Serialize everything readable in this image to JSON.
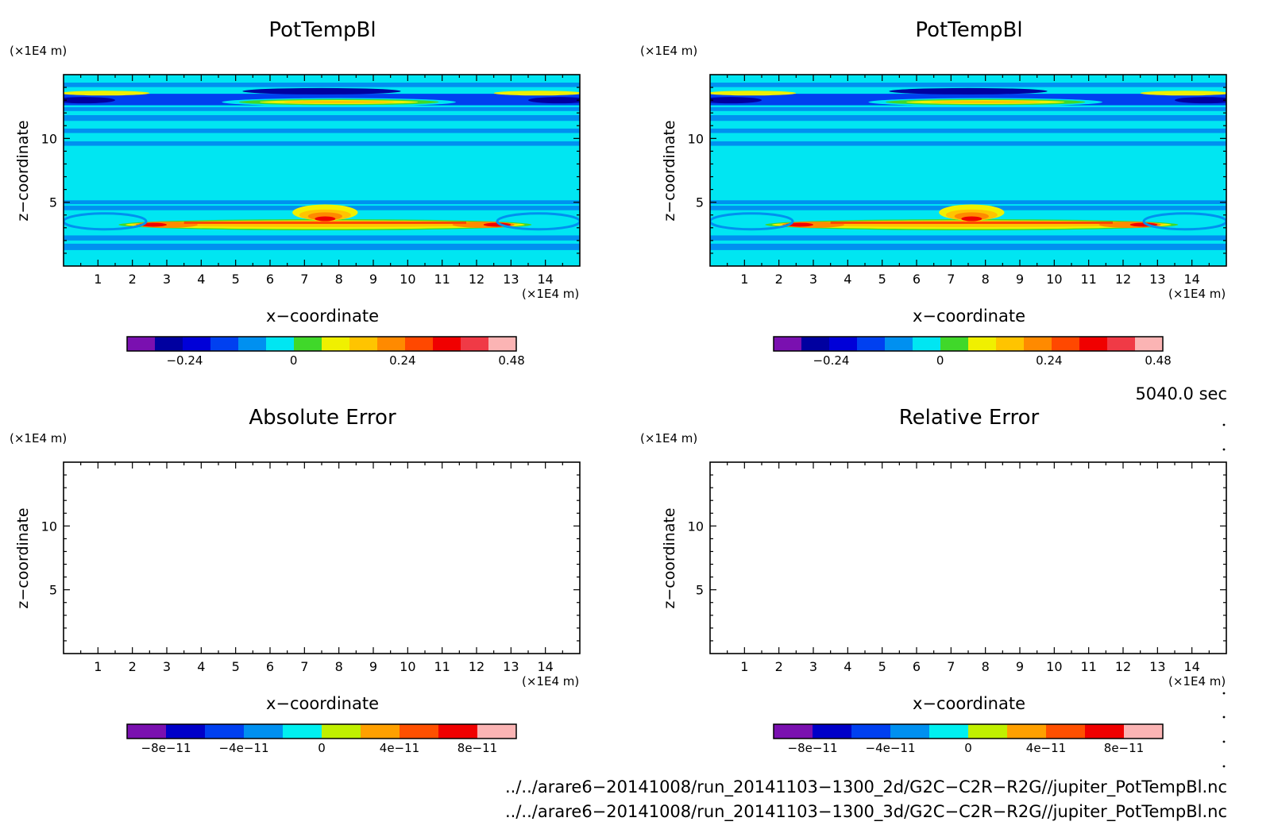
{
  "panels": [
    {
      "title": "PotTempBl",
      "xlabel": "x−coordinate",
      "ylabel": "z−coordinate",
      "x_unit": "(×1E4 m)",
      "y_unit": "(×1E4 m)",
      "field": "potential-temperature",
      "colorbar": {
        "levels": [
          "-0.36",
          "-0.30",
          "-0.24",
          "-0.18",
          "-0.12",
          "-0.06",
          "0",
          "0.06",
          "0.12",
          "0.18",
          "0.24",
          "0.30",
          "0.36",
          "0.42",
          "0.48",
          "0.54"
        ],
        "tick_labels": [
          "−0.24",
          "0",
          "0.24",
          "0.48"
        ],
        "tick_values": [
          -0.24,
          0,
          0.24,
          0.48
        ],
        "colors": [
          "#7a10b0",
          "#0000a0",
          "#0000d8",
          "#0040f0",
          "#0090f0",
          "#00e6f2",
          "#40d82a",
          "#f0f000",
          "#ffc400",
          "#ff8a00",
          "#ff4800",
          "#f00000",
          "#f03a46",
          "#fbb4b4"
        ]
      }
    },
    {
      "title": "PotTempBl",
      "xlabel": "x−coordinate",
      "ylabel": "z−coordinate",
      "x_unit": "(×1E4 m)",
      "y_unit": "(×1E4 m)",
      "field": "potential-temperature",
      "colorbar": {
        "tick_labels": [
          "−0.24",
          "0",
          "0.24",
          "0.48"
        ],
        "tick_values": [
          -0.24,
          0,
          0.24,
          0.48
        ],
        "colors": [
          "#7a10b0",
          "#0000a0",
          "#0000d8",
          "#0040f0",
          "#0090f0",
          "#00e6f2",
          "#40d82a",
          "#f0f000",
          "#ffc400",
          "#ff8a00",
          "#ff4800",
          "#f00000",
          "#f03a46",
          "#fbb4b4"
        ]
      }
    },
    {
      "title": "Absolute Error",
      "xlabel": "x−coordinate",
      "ylabel": "z−coordinate",
      "x_unit": "(×1E4 m)",
      "y_unit": "(×1E4 m)",
      "field": "empty",
      "colorbar": {
        "tick_labels": [
          "−8e−11",
          "−4e−11",
          "0",
          "4e−11",
          "8e−11"
        ],
        "tick_values": [
          -8e-11,
          -4e-11,
          0,
          4e-11,
          8e-11
        ],
        "colors": [
          "#7a10b0",
          "#0000c8",
          "#0040f0",
          "#0090f0",
          "#00f0f0",
          "#c0f000",
          "#ffa000",
          "#ff5000",
          "#f00000",
          "#fbb4b4"
        ]
      }
    },
    {
      "title": "Relative Error",
      "xlabel": "x−coordinate",
      "ylabel": "z−coordinate",
      "x_unit": "(×1E4 m)",
      "y_unit": "(×1E4 m)",
      "field": "empty",
      "colorbar": {
        "tick_labels": [
          "−8e−11",
          "−4e−11",
          "0",
          "4e−11",
          "8e−11"
        ],
        "tick_values": [
          -8e-11,
          -4e-11,
          0,
          4e-11,
          8e-11
        ],
        "colors": [
          "#7a10b0",
          "#0000c8",
          "#0040f0",
          "#0090f0",
          "#00f0f0",
          "#c0f000",
          "#ffa000",
          "#ff5000",
          "#f00000",
          "#fbb4b4"
        ]
      }
    }
  ],
  "time_label": "5040.0 sec",
  "file_paths": [
    "../../arare6−20141008/run_20141103−1300_2d/G2C−C2R−R2G//jupiter_PotTempBl.nc",
    "../../arare6−20141008/run_20141103−1300_3d/G2C−C2R−R2G//jupiter_PotTempBl.nc"
  ],
  "chart_data": [
    {
      "type": "heatmap",
      "title": "PotTempBl",
      "xlabel": "x−coordinate",
      "ylabel": "z−coordinate",
      "xlim": [
        0,
        15
      ],
      "ylim": [
        0,
        15
      ],
      "x_ticks": [
        1,
        2,
        3,
        4,
        5,
        6,
        7,
        8,
        9,
        10,
        11,
        12,
        13,
        14
      ],
      "y_ticks": [
        5,
        10
      ],
      "colorbar_ticks": [
        -0.24,
        0,
        0.24,
        0.48
      ],
      "features": [
        {
          "name": "main-band",
          "z": 3.3,
          "x_range": [
            2,
            13.4
          ],
          "value": 0.5
        },
        {
          "name": "central-bump",
          "x": 7.6,
          "z": 4.2,
          "value": 0.48
        },
        {
          "name": "upper-band-center",
          "z": 12.9,
          "x_range": [
            6,
            11
          ],
          "value": 0.24
        },
        {
          "name": "upper-band-edges",
          "z": 13.1,
          "value": -0.3
        }
      ]
    },
    {
      "type": "heatmap",
      "title": "PotTempBl",
      "xlabel": "x−coordinate",
      "ylabel": "z−coordinate",
      "xlim": [
        0,
        15
      ],
      "ylim": [
        0,
        15
      ],
      "x_ticks": [
        1,
        2,
        3,
        4,
        5,
        6,
        7,
        8,
        9,
        10,
        11,
        12,
        13,
        14
      ],
      "y_ticks": [
        5,
        10
      ],
      "colorbar_ticks": [
        -0.24,
        0,
        0.24,
        0.48
      ]
    },
    {
      "type": "heatmap",
      "title": "Absolute Error",
      "xlabel": "x−coordinate",
      "ylabel": "z−coordinate",
      "xlim": [
        0,
        15
      ],
      "ylim": [
        0,
        15
      ],
      "x_ticks": [
        1,
        2,
        3,
        4,
        5,
        6,
        7,
        8,
        9,
        10,
        11,
        12,
        13,
        14
      ],
      "y_ticks": [
        5,
        10
      ],
      "colorbar_ticks": [
        -8e-11,
        -4e-11,
        0,
        4e-11,
        8e-11
      ],
      "values": "empty"
    },
    {
      "type": "heatmap",
      "title": "Relative Error",
      "xlabel": "x−coordinate",
      "ylabel": "z−coordinate",
      "xlim": [
        0,
        15
      ],
      "ylim": [
        0,
        15
      ],
      "x_ticks": [
        1,
        2,
        3,
        4,
        5,
        6,
        7,
        8,
        9,
        10,
        11,
        12,
        13,
        14
      ],
      "y_ticks": [
        5,
        10
      ],
      "colorbar_ticks": [
        -8e-11,
        -4e-11,
        0,
        4e-11,
        8e-11
      ],
      "values": "empty"
    }
  ]
}
